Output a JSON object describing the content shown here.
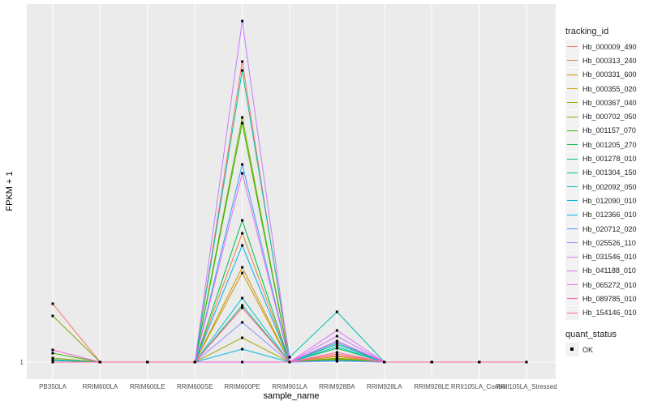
{
  "chart_data": {
    "type": "line",
    "xlabel": "sample_name",
    "ylabel": "FPKM + 1",
    "ylim": [
      -1.1,
      45.2
    ],
    "yticks": [
      1
    ],
    "ytick_labels": [
      "1"
    ],
    "grid": true,
    "legend_position": "right",
    "categories": [
      "PB350LA",
      "RRIM600LA",
      "RRIM600LE",
      "RRIM600SE",
      "RRIM600PE",
      "RRIM901LA",
      "RRIM928BA",
      "RRIM928LA",
      "RRIM928LE",
      "RRII105LA_Control",
      "RRII105LA_Stressed"
    ],
    "legend_title": "tracking_id",
    "shape_legend_title": "quant_status",
    "shape_legend_items": [
      "OK"
    ],
    "series": [
      {
        "name": "Hb_000009_490",
        "color": "#F8766D",
        "values": [
          8.2,
          1,
          1,
          1,
          38.1,
          1,
          1.4,
          1,
          1,
          1,
          1
        ]
      },
      {
        "name": "Hb_000313_240",
        "color": "#EA8331",
        "values": [
          1,
          1,
          1,
          1,
          16.9,
          1,
          2.0,
          1,
          1,
          1,
          1
        ]
      },
      {
        "name": "Hb_000331_600",
        "color": "#D89000",
        "values": [
          1,
          1,
          1,
          1,
          12.7,
          1,
          1.7,
          1,
          1,
          1,
          1
        ]
      },
      {
        "name": "Hb_000355_020",
        "color": "#C09B00",
        "values": [
          1.3,
          1,
          1,
          1,
          12.0,
          1,
          1.4,
          1,
          1,
          1,
          1
        ]
      },
      {
        "name": "Hb_000367_040",
        "color": "#A3A500",
        "values": [
          1.5,
          1,
          1,
          1,
          4.0,
          1,
          1.2,
          1,
          1,
          1,
          1
        ]
      },
      {
        "name": "Hb_000702_050",
        "color": "#7CAE00",
        "values": [
          6.7,
          1,
          1,
          1,
          31.2,
          1,
          1.5,
          1,
          1,
          1,
          1
        ]
      },
      {
        "name": "Hb_001157_070",
        "color": "#39B600",
        "values": [
          2.1,
          1,
          1,
          1,
          30.5,
          1,
          1.3,
          1,
          1,
          1,
          1
        ]
      },
      {
        "name": "Hb_001205_270",
        "color": "#00BB4E",
        "values": [
          1,
          1,
          1,
          1,
          18.5,
          1,
          2.7,
          1,
          1,
          1,
          1
        ]
      },
      {
        "name": "Hb_001278_010",
        "color": "#00BF7D",
        "values": [
          1.3,
          1,
          1,
          1,
          8.0,
          1,
          3.2,
          1,
          1,
          1,
          1
        ]
      },
      {
        "name": "Hb_001304_150",
        "color": "#00C1A3",
        "values": [
          1,
          1,
          1,
          1,
          37.0,
          1.6,
          7.2,
          1,
          1,
          1,
          1
        ]
      },
      {
        "name": "Hb_002092_050",
        "color": "#00BFC4",
        "values": [
          1,
          1,
          1,
          1,
          8.9,
          1,
          2.9,
          1,
          1,
          1,
          1
        ]
      },
      {
        "name": "Hb_012090_010",
        "color": "#00BAE0",
        "values": [
          1.2,
          1,
          1,
          1,
          2.6,
          1,
          1.2,
          1,
          1,
          1,
          1
        ]
      },
      {
        "name": "Hb_012366_010",
        "color": "#00B0F6",
        "values": [
          1,
          1,
          1,
          1,
          15.4,
          1,
          3.6,
          1,
          1,
          1,
          1
        ]
      },
      {
        "name": "Hb_020712_020",
        "color": "#35A2FF",
        "values": [
          1,
          1,
          1,
          1,
          25.4,
          1,
          3.4,
          1,
          1,
          1,
          1
        ]
      },
      {
        "name": "Hb_025526_110",
        "color": "#9590FF",
        "values": [
          1,
          1,
          1,
          1,
          5.9,
          1,
          1.1,
          1,
          1,
          1,
          1
        ]
      },
      {
        "name": "Hb_031546_010",
        "color": "#C77CFF",
        "values": [
          1,
          1,
          1,
          1,
          43.1,
          1,
          4.2,
          1,
          1,
          1,
          1
        ]
      },
      {
        "name": "Hb_041188_010",
        "color": "#E76BF3",
        "values": [
          1,
          1,
          1,
          1,
          24.3,
          1,
          4.9,
          1,
          1,
          1,
          1
        ]
      },
      {
        "name": "Hb_065272_010",
        "color": "#FA62DB",
        "values": [
          2.5,
          1,
          1,
          1,
          1,
          1,
          3.6,
          1,
          1,
          1,
          1
        ]
      },
      {
        "name": "Hb_089785_010",
        "color": "#FF62BC",
        "values": [
          1,
          1,
          1,
          1,
          7.7,
          1,
          2.2,
          1,
          1,
          1,
          1
        ]
      },
      {
        "name": "Hb_154146_010",
        "color": "#FF6C90",
        "values": [
          1,
          1,
          1,
          1,
          7.7,
          1,
          1.8,
          1,
          1,
          1,
          1
        ]
      }
    ]
  }
}
